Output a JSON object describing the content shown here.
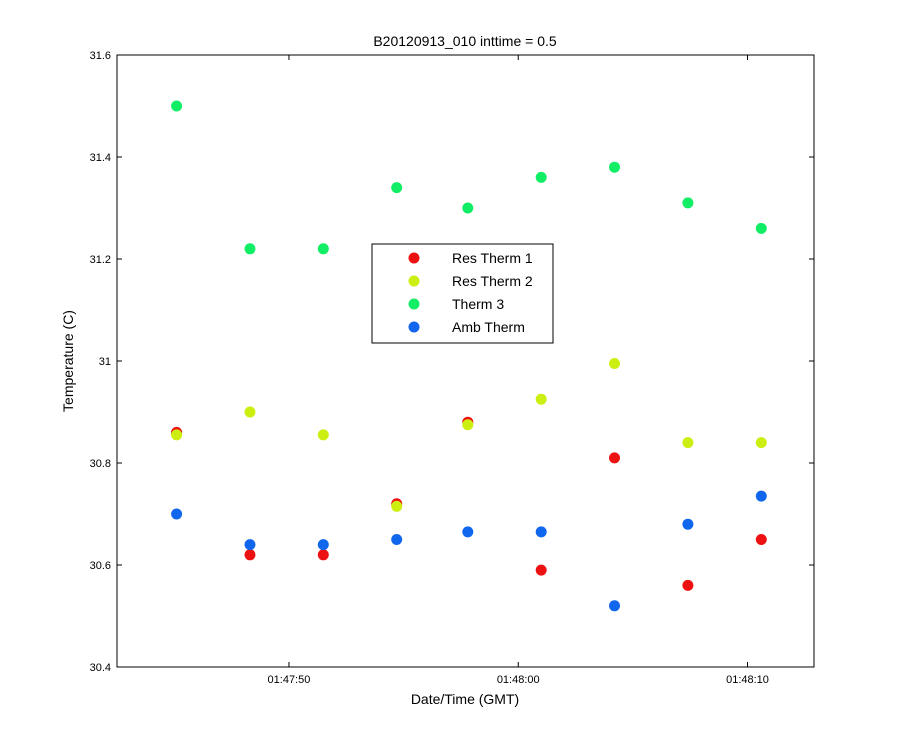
{
  "chart_data": {
    "type": "scatter",
    "title": "B20120913_010 inttime = 0.5",
    "xlabel": "Date/Time (GMT)",
    "ylabel": "Temperature (C)",
    "ylim": [
      30.4,
      31.6
    ],
    "xlim": [
      "01:47:42.5",
      "01:48:12.9"
    ],
    "x": [
      "01:47:45.1",
      "01:47:48.3",
      "01:47:51.5",
      "01:47:54.7",
      "01:47:57.8",
      "01:48:01.0",
      "01:48:04.2",
      "01:48:07.4",
      "01:48:10.6"
    ],
    "x_ticks": [
      "01:47:50",
      "01:48:00",
      "01:48:10"
    ],
    "y_ticks": [
      "30.4",
      "30.6",
      "30.8",
      "31",
      "31.2",
      "31.4",
      "31.6"
    ],
    "grid": false,
    "legend_position": "center",
    "series": [
      {
        "name": "Res Therm 1",
        "color": "#ee1111",
        "values": [
          30.86,
          30.62,
          30.62,
          30.72,
          30.88,
          30.59,
          30.81,
          30.56,
          30.65
        ]
      },
      {
        "name": "Res Therm 2",
        "color": "#ccee11",
        "values": [
          30.855,
          30.9,
          30.855,
          30.715,
          30.875,
          30.925,
          30.995,
          30.84,
          30.84
        ]
      },
      {
        "name": "Therm 3",
        "color": "#11ee66",
        "values": [
          31.5,
          31.22,
          31.22,
          31.34,
          31.3,
          31.36,
          31.38,
          31.31,
          31.26
        ]
      },
      {
        "name": "Amb Therm",
        "color": "#1166ee",
        "values": [
          30.7,
          30.64,
          30.64,
          30.65,
          30.665,
          30.665,
          30.52,
          30.68,
          30.735
        ]
      }
    ]
  }
}
